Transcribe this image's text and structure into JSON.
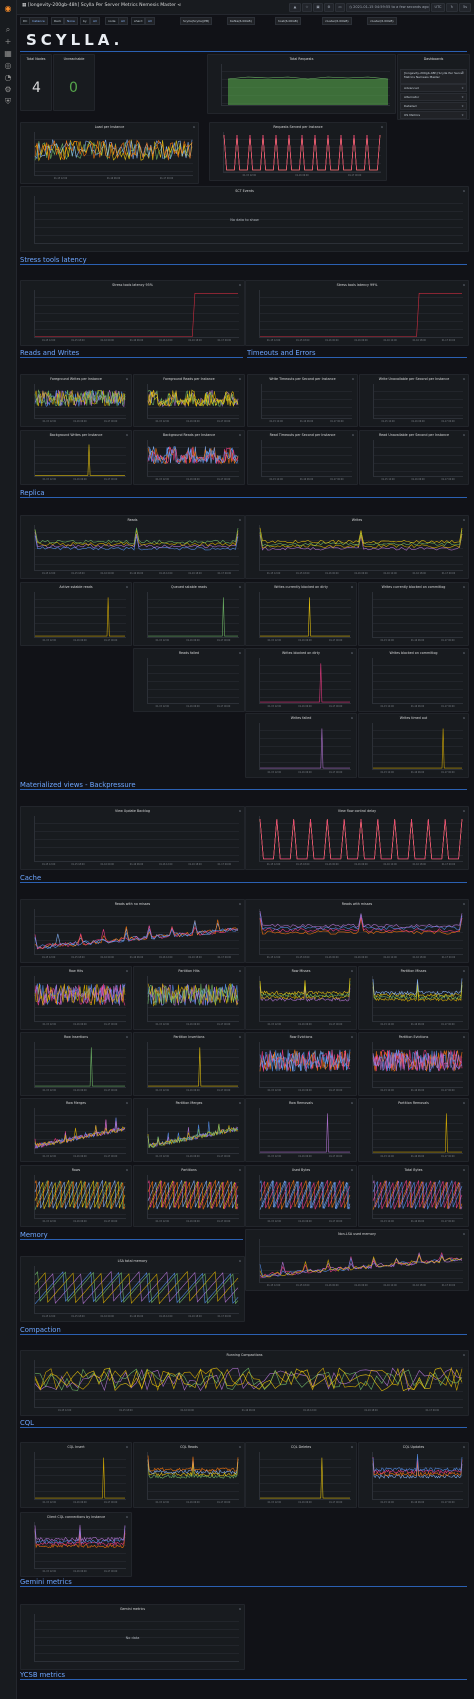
{
  "app": {
    "title": "[longevity-200gb-48h] Scylla Per Server Metrics Nemesis Master",
    "logo": "SCYLLA.",
    "time_range": "2021-01-15 04:59:55 to a few seconds ago",
    "zoom": "UTC",
    "live": "5s"
  },
  "variables": [
    {
      "label": "DC",
      "value": "Instance"
    },
    {
      "label": "Rack",
      "value": "None"
    },
    {
      "label": "by",
      "value": "All"
    },
    {
      "label": "node",
      "value": "All"
    },
    {
      "label": "shard",
      "value": "All"
    },
    {
      "label": "",
      "value": "Scylla(Scylla)(PB)"
    },
    {
      "label": "",
      "value": "Kafka(6.00GB)"
    },
    {
      "label": "",
      "value": "host(6.00GB)"
    },
    {
      "label": "",
      "value": "cluster(6.00GB)"
    },
    {
      "label": "",
      "value": "cluster(6.00GB)"
    }
  ],
  "colors": {
    "accent": "#3274d9",
    "ok": "#56a64b",
    "bg": "#111217",
    "panel": "#181b1f"
  },
  "icons": [
    "search-icon",
    "plus-icon",
    "dashboards-icon",
    "explore-icon",
    "alerting-icon",
    "configuration-icon",
    "shield-icon"
  ],
  "stats": {
    "total_nodes_title": "Total Nodes",
    "total_nodes": "4",
    "unreachable_title": "Unreachable",
    "unreachable": "0"
  },
  "dashboards": {
    "title": "Dashboards",
    "items": [
      {
        "label": "[longevity-200gb-48h] Scylla Per Server Metrics Nemesis Master",
        "starred": true
      },
      {
        "label": "Advanced",
        "starred": true
      },
      {
        "label": "Alternator",
        "starred": true
      },
      {
        "label": "Detailed",
        "starred": true
      },
      {
        "label": "OS Metrics",
        "starred": true
      }
    ]
  },
  "panels": {
    "total_requests": "Total Requests",
    "load_per_instance": "Load per Instance",
    "requests_served": "Requests Served per Instance",
    "scylla_events": "SCT Events",
    "no_data": "No data to show",
    "stress_95": "Stress tools latency 95%",
    "stress_99": "Stress tools latency 99%",
    "fg_writes": "Foreground Writes per Instance",
    "fg_reads": "Foreground Reads per Instance",
    "write_timeouts": "Write Timeouts per Second per Instance",
    "write_unavail": "Write Unavailable per Second per Instance",
    "bg_writes": "Background Writes per Instance",
    "bg_reads": "Background Reads per Instance",
    "read_timeouts": "Read Timeouts per Second per Instance",
    "read_unavail": "Read Unavailable per Second per Instance",
    "reads": "Reads",
    "writes": "Writes",
    "active_reads": "Active sstable reads",
    "queued_reads": "Queued sstable reads",
    "writes_blocked_dirty": "Writes currently blocked on dirty",
    "writes_blocked_commit": "Writes currently blocked on commitlog",
    "reads_failed": "Reads failed",
    "wb_dirty": "Writes blocked on dirty",
    "wb_commit": "Writes blocked on commitlog",
    "writes_failed": "Writes failed",
    "writes_timed_out": "Writes timed out",
    "view_backlog": "View Update Backlog",
    "view_flow": "View flow control delay",
    "reads_no_misses": "Reads with no misses",
    "reads_misses": "Reads with misses",
    "row_hits": "Row Hits",
    "partition_hits": "Partition Hits",
    "row_misses": "Row Misses",
    "partition_misses": "Partition Misses",
    "row_insertions": "Row Insertions",
    "partition_insertions": "Partition Insertions",
    "row_evictions": "Row Evictions",
    "partition_evictions": "Partition Evictions",
    "row_merges": "Row Merges",
    "partition_merges": "Partition Merges",
    "row_removals": "Row Removals",
    "partition_removals": "Partition Removals",
    "rows": "Rows",
    "partitions": "Partitions",
    "used_bytes": "Used Bytes",
    "total_bytes": "Total Bytes",
    "lsa_memory": "LSA total memory",
    "non_lsa_memory": "Non-LSA used memory",
    "running_compactions": "Running Compactions",
    "cql_insert": "CQL Insert",
    "cql_reads": "CQL Reads",
    "cql_deletes": "CQL Deletes",
    "cql_updates": "CQL Updates",
    "cql_connections": "Client CQL connections by instance",
    "gemini_metrics": "Gemini metrics",
    "no_data2": "No data"
  },
  "sections": {
    "stress": "Stress tools latency",
    "rw": "Reads and Writes",
    "timeouts": "Timeouts and Errors",
    "replica": "Replica",
    "mv": "Materialized views - Backpressure",
    "cache": "Cache",
    "memory": "Memory",
    "compaction": "Compaction",
    "cql": "CQL",
    "gemini": "Gemini metrics",
    "ycsb": "YCSB metrics"
  },
  "axis": {
    "times": [
      "01-15 12:00",
      "01-15 18:00",
      "01-16 00:00",
      "01-16 06:00",
      "01-16 12:00",
      "01-16 18:00",
      "01-17 00:00"
    ]
  }
}
